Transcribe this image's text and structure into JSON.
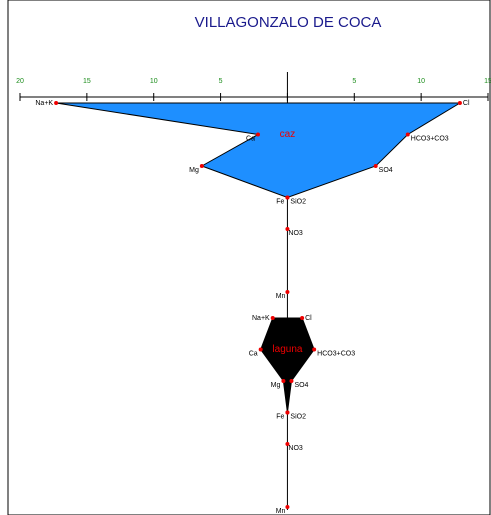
{
  "chart_data": {
    "type": "stiff",
    "title": "VILLAGONZALO DE COCA",
    "xlim": [
      -20,
      15
    ],
    "xticks": [
      {
        "value": -20,
        "label": "20"
      },
      {
        "value": -15,
        "label": "15"
      },
      {
        "value": -10,
        "label": "10"
      },
      {
        "value": -5,
        "label": "5"
      },
      0,
      5,
      10,
      15
    ],
    "left_ions": [
      "Na+K",
      "Ca",
      "Mg",
      "Fe"
    ],
    "right_ions": [
      "Cl",
      "HCO3+CO3",
      "SO4",
      "SiO2"
    ],
    "center_ions": [
      "NO3",
      "Mn"
    ],
    "series": [
      {
        "name": "caz",
        "color": "#1e8fff",
        "left": [
          17.3,
          2.2,
          6.4,
          0
        ],
        "right": [
          12.9,
          9.0,
          6.6,
          0
        ],
        "center": [
          0,
          0
        ]
      },
      {
        "name": "laguna",
        "color": "#000000",
        "left": [
          1.1,
          2.0,
          0.3,
          0
        ],
        "right": [
          1.1,
          2.0,
          0.3,
          0
        ],
        "center": [
          0,
          0
        ]
      }
    ]
  }
}
